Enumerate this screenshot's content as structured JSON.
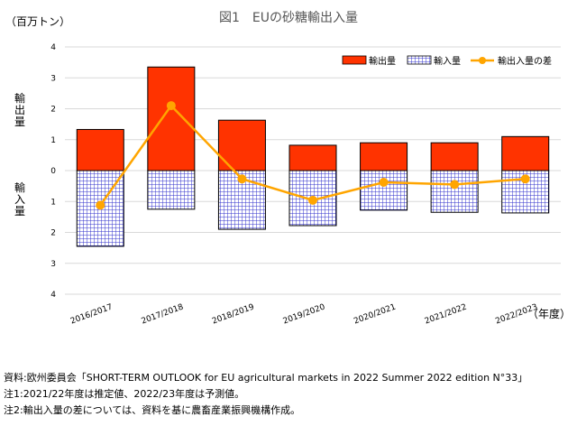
{
  "chart_data": {
    "type": "bar",
    "title": "図1　EUの砂糖輸出入量",
    "unit_label": "（百万トン）",
    "x_unit_label": "（年度）",
    "ylabel_upper": "輸出量",
    "ylabel_lower": "輸入量",
    "ylim": [
      -4,
      4
    ],
    "yticks": [
      4,
      3,
      2,
      1,
      0,
      1,
      2,
      3,
      4
    ],
    "yticks_values": [
      4,
      3,
      2,
      1,
      0,
      -1,
      -2,
      -3,
      -4
    ],
    "grid": true,
    "legend_position": "top-right",
    "categories": [
      "2016/2017",
      "2017/2018",
      "2018/2019",
      "2019/2020",
      "2020/2021",
      "2021/2022",
      "2022/2023"
    ],
    "series": [
      {
        "name": "輸出量",
        "kind": "bar",
        "color": "#ff3300",
        "values": [
          1.33,
          3.35,
          1.63,
          0.82,
          0.9,
          0.9,
          1.1
        ]
      },
      {
        "name": "輸入量",
        "kind": "bar",
        "color": "#3333cc",
        "values": [
          -2.45,
          -1.25,
          -1.9,
          -1.78,
          -1.28,
          -1.35,
          -1.37
        ]
      },
      {
        "name": "輸出入量の差",
        "kind": "line",
        "color": "#ffa500",
        "values": [
          -1.12,
          2.1,
          -0.27,
          -0.96,
          -0.38,
          -0.45,
          -0.27
        ]
      }
    ]
  },
  "notes": [
    "資料:欧州委員会「SHORT-TERM OUTLOOK for EU agricultural markets in 2022 Summer 2022 edition N°33」",
    "注1:2021/22年度は推定値、2022/23年度は予測値。",
    "注2:輸出入量の差については、資料を基に農畜産業振興機構作成。"
  ]
}
